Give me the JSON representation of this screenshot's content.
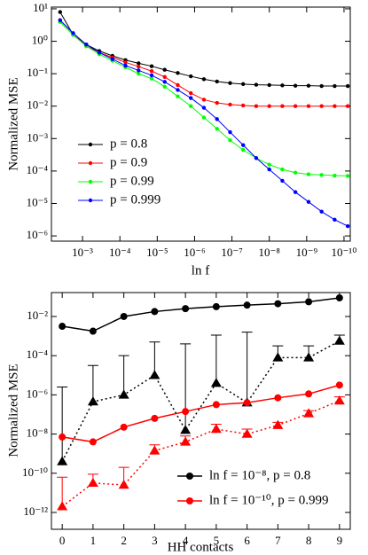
{
  "chart_data": [
    {
      "type": "line",
      "x_label": "ln f",
      "y_label": "Normalized MSE",
      "log_x": true,
      "log_y": true,
      "x": [
        0.00398,
        0.00178,
        0.000794,
        0.000355,
        0.000158,
        7.08e-05,
        3.16e-05,
        1.41e-05,
        6.31e-06,
        2.82e-06,
        1.26e-06,
        5.62e-07,
        2.51e-07,
        1.12e-07,
        5.01e-08,
        2.24e-08,
        1e-08,
        4.47e-09,
        2e-09,
        8.91e-10,
        3.98e-10,
        1.78e-10,
        7.94e-11
      ],
      "xlim": [
        0.0068,
        6.8e-11
      ],
      "xticks": [
        {
          "value": 0.001,
          "label": "10⁻³"
        },
        {
          "value": 0.0001,
          "label": "10⁻⁴"
        },
        {
          "value": 1e-05,
          "label": "10⁻⁵"
        },
        {
          "value": 1e-06,
          "label": "10⁻⁶"
        },
        {
          "value": 1e-07,
          "label": "10⁻⁷"
        },
        {
          "value": 1e-08,
          "label": "10⁻⁸"
        },
        {
          "value": 1e-09,
          "label": "10⁻⁹"
        },
        {
          "value": 1e-10,
          "label": "10⁻¹⁰"
        }
      ],
      "ylim": [
        6.9e-07,
        11.3
      ],
      "yticks": [
        {
          "value": 1e-06,
          "label": "10⁻⁶"
        },
        {
          "value": 1e-05,
          "label": "10⁻⁵"
        },
        {
          "value": 0.0001,
          "label": "10⁻⁴"
        },
        {
          "value": 0.001,
          "label": "10⁻³"
        },
        {
          "value": 0.01,
          "label": "10⁻²"
        },
        {
          "value": 0.1,
          "label": "10⁻¹"
        },
        {
          "value": 1,
          "label": "10⁰"
        },
        {
          "value": 10,
          "label": "10¹"
        }
      ],
      "legend": "center left",
      "series": [
        {
          "name": "p = 0.8",
          "color": "#000000",
          "marker": "circle",
          "values": [
            7.94,
            1.58,
            0.794,
            0.501,
            0.355,
            0.263,
            0.209,
            0.17,
            0.132,
            0.105,
            0.0832,
            0.0676,
            0.0575,
            0.0513,
            0.0479,
            0.0457,
            0.0447,
            0.0437,
            0.0427,
            0.0427,
            0.0417,
            0.0417,
            0.0417
          ]
        },
        {
          "name": "p = 0.9",
          "color": "#ff0000",
          "marker": "circle",
          "values": [
            3.98,
            1.58,
            0.708,
            0.447,
            0.316,
            0.224,
            0.166,
            0.12,
            0.0794,
            0.0447,
            0.0251,
            0.0158,
            0.0126,
            0.0112,
            0.0105,
            0.01,
            0.01,
            0.01,
            0.01,
            0.01,
            0.01,
            0.01,
            0.01
          ]
        },
        {
          "name": "p = 0.99",
          "color": "#00ff00",
          "marker": "circle",
          "values": [
            3.98,
            1.58,
            0.708,
            0.398,
            0.251,
            0.158,
            0.1,
            0.0708,
            0.0398,
            0.02,
            0.01,
            0.00447,
            0.002,
            0.000891,
            0.000447,
            0.000251,
            0.000158,
            0.000112,
            8.91e-05,
            7.94e-05,
            7.59e-05,
            7.24e-05,
            7.08e-05
          ]
        },
        {
          "name": "p = 0.999",
          "color": "#0000ff",
          "marker": "circle",
          "values": [
            4.47,
            1.78,
            0.794,
            0.447,
            0.282,
            0.178,
            0.126,
            0.0891,
            0.0562,
            0.0316,
            0.0178,
            0.00891,
            0.00398,
            0.00158,
            0.000631,
            0.000251,
            0.000112,
            5.01e-05,
            2.24e-05,
            1.12e-05,
            5.62e-06,
            3.16e-06,
            2e-06
          ]
        }
      ]
    },
    {
      "type": "line",
      "x_label": "HH contacts",
      "y_label": "Normalized MSE",
      "log_x": false,
      "log_y": true,
      "x": [
        0,
        1,
        2,
        3,
        4,
        5,
        6,
        7,
        8,
        9
      ],
      "xlim": [
        -0.35,
        9.35
      ],
      "xticks": [
        0,
        1,
        2,
        3,
        4,
        5,
        6,
        7,
        8,
        9
      ],
      "ylim": [
        1.38e-13,
        0.166
      ],
      "yticks": [
        {
          "value": 1e-12,
          "label": "10⁻¹²"
        },
        {
          "value": 1e-10,
          "label": "10⁻¹⁰"
        },
        {
          "value": 1e-08,
          "label": "10⁻⁸"
        },
        {
          "value": 1e-06,
          "label": "10⁻⁶"
        },
        {
          "value": 0.0001,
          "label": "10⁻⁴"
        },
        {
          "value": 0.01,
          "label": "10⁻²"
        }
      ],
      "legend": "lower right",
      "series": [
        {
          "name": "ln f = 10⁻⁸, p = 0.8",
          "color": "#000000",
          "marker": "circle",
          "values": [
            0.00316,
            0.00178,
            0.01,
            0.0178,
            0.0251,
            0.0316,
            0.038,
            0.0447,
            0.0562,
            0.0891
          ]
        },
        {
          "color": "#000000",
          "marker": "triangle",
          "dotted": true,
          "values": [
            3.98e-10,
            4.47e-07,
            1e-06,
            1e-05,
            1.58e-08,
            3.98e-06,
            3.98e-07,
            7.94e-05,
            7.94e-05,
            0.000562
          ],
          "err_high": [
            2.51e-06,
            3.16e-05,
            0.0001,
            0.000501,
            0.000398,
            0.00112,
            0.00158,
            0.000316,
            0.000316,
            0.00112
          ]
        },
        {
          "name": "ln f = 10⁻¹⁰, p = 0.999",
          "color": "#ff0000",
          "marker": "circle",
          "values": [
            7.08e-09,
            3.98e-09,
            2.24e-08,
            6.31e-08,
            1.41e-07,
            3.16e-07,
            3.98e-07,
            7.08e-07,
            1.12e-06,
            3.16e-06
          ]
        },
        {
          "color": "#ff0000",
          "marker": "triangle",
          "dotted": true,
          "values": [
            2e-12,
            3.16e-11,
            2.51e-11,
            1.41e-09,
            3.98e-09,
            1.78e-08,
            1e-08,
            2.82e-08,
            1.12e-07,
            5.01e-07
          ],
          "err_high": [
            6.31e-11,
            8.91e-11,
            2e-10,
            2.82e-09,
            7.94e-09,
            3.16e-08,
            1.78e-08,
            3.98e-08,
            1.58e-07,
            7.94e-07
          ]
        }
      ]
    }
  ]
}
